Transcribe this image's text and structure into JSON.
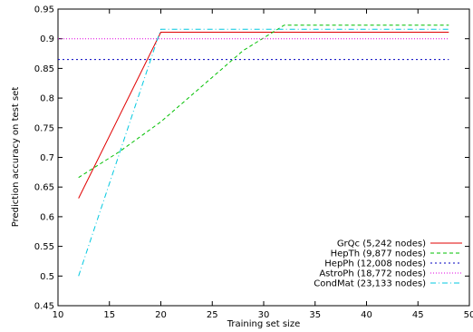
{
  "chart_data": {
    "type": "line",
    "xlabel": "Training set size",
    "ylabel": "Prediction accuracy on test set",
    "xlim": [
      10,
      50
    ],
    "ylim": [
      0.45,
      0.95
    ],
    "xticks": [
      10,
      15,
      20,
      25,
      30,
      35,
      40,
      45,
      50
    ],
    "yticks": [
      0.45,
      0.5,
      0.55,
      0.6,
      0.65,
      0.7,
      0.75,
      0.8,
      0.85,
      0.9,
      0.95
    ],
    "legend_position": "bottom-right",
    "grid": false,
    "series": [
      {
        "name": "GrQc (5,242 nodes)",
        "color": "#e00000",
        "dash": "solid",
        "points": [
          [
            12,
            0.631
          ],
          [
            20,
            0.911
          ],
          [
            48,
            0.911
          ]
        ]
      },
      {
        "name": "HepTh (9,877 nodes)",
        "color": "#00c000",
        "dash": "dashed",
        "points": [
          [
            12,
            0.666
          ],
          [
            16,
            0.71
          ],
          [
            20,
            0.76
          ],
          [
            24,
            0.82
          ],
          [
            28,
            0.88
          ],
          [
            32,
            0.923
          ],
          [
            48,
            0.923
          ]
        ]
      },
      {
        "name": "HepPh (12,008 nodes)",
        "color": "#0000c0",
        "dash": "dotted",
        "points": [
          [
            10,
            0.865
          ],
          [
            48,
            0.865
          ]
        ]
      },
      {
        "name": "AstroPh (18,772 nodes)",
        "color": "#e000e0",
        "dash": "dotted-fine",
        "points": [
          [
            10,
            0.9
          ],
          [
            48,
            0.9
          ]
        ]
      },
      {
        "name": "CondMat (23,133 nodes)",
        "color": "#00c8e0",
        "dash": "dashdot",
        "points": [
          [
            12,
            0.5
          ],
          [
            20,
            0.916
          ],
          [
            48,
            0.916
          ]
        ]
      }
    ]
  }
}
